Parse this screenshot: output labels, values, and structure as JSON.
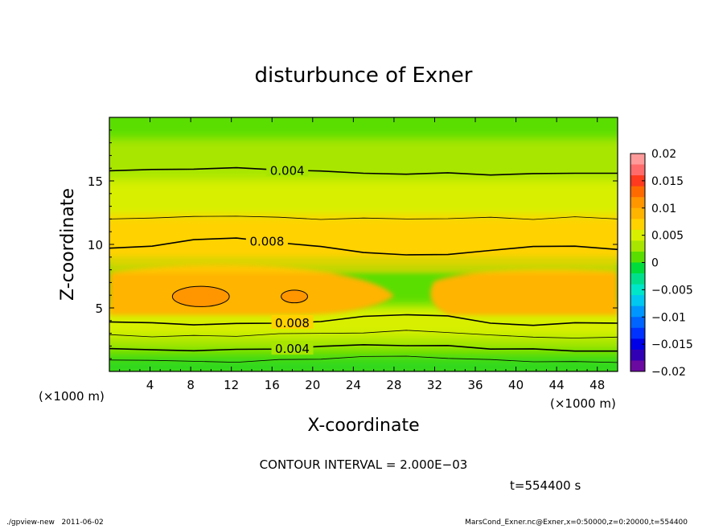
{
  "chart_data": {
    "type": "heatmap",
    "title": "disturbunce of Exner",
    "xlabel": "X-coordinate",
    "ylabel": "Z-coordinate",
    "x_unit_left": "(×1000 m)",
    "x_unit_right": "(×1000 m)",
    "xlim": [
      0,
      50
    ],
    "ylim": [
      0,
      20
    ],
    "x_ticks": [
      4,
      8,
      12,
      16,
      20,
      24,
      28,
      32,
      36,
      40,
      44,
      48
    ],
    "y_ticks": [
      5,
      10,
      15
    ],
    "colorbar": {
      "ticks": [
        0.02,
        0.015,
        0.01,
        0.005,
        0,
        -0.005,
        -0.01,
        -0.015,
        -0.02
      ],
      "tick_labels": [
        "0.02",
        "0.015",
        "0.01",
        "0.005",
        "0",
        "−0.005",
        "−0.01",
        "−0.015",
        "−0.02"
      ],
      "range": [
        -0.02,
        0.02
      ],
      "levels": [
        {
          "lo": 0.018,
          "hi": 0.02,
          "color": "#ff9a9a"
        },
        {
          "lo": 0.016,
          "hi": 0.018,
          "color": "#ff6b6b"
        },
        {
          "lo": 0.014,
          "hi": 0.016,
          "color": "#ff3a1e"
        },
        {
          "lo": 0.012,
          "hi": 0.014,
          "color": "#ff6a00"
        },
        {
          "lo": 0.01,
          "hi": 0.012,
          "color": "#ff9600"
        },
        {
          "lo": 0.008,
          "hi": 0.01,
          "color": "#ffb400"
        },
        {
          "lo": 0.006,
          "hi": 0.008,
          "color": "#ffd200"
        },
        {
          "lo": 0.004,
          "hi": 0.006,
          "color": "#d8f000"
        },
        {
          "lo": 0.002,
          "hi": 0.004,
          "color": "#a8e600"
        },
        {
          "lo": 0.0,
          "hi": 0.002,
          "color": "#5ade00"
        },
        {
          "lo": -0.002,
          "hi": 0.0,
          "color": "#00dc3c"
        },
        {
          "lo": -0.004,
          "hi": -0.002,
          "color": "#00e08c"
        },
        {
          "lo": -0.006,
          "hi": -0.004,
          "color": "#00e6c8"
        },
        {
          "lo": -0.008,
          "hi": -0.006,
          "color": "#00c8f0"
        },
        {
          "lo": -0.01,
          "hi": -0.008,
          "color": "#0096ff"
        },
        {
          "lo": -0.012,
          "hi": -0.01,
          "color": "#0064ff"
        },
        {
          "lo": -0.014,
          "hi": -0.012,
          "color": "#0032ff"
        },
        {
          "lo": -0.016,
          "hi": -0.014,
          "color": "#0000e6"
        },
        {
          "lo": -0.018,
          "hi": -0.016,
          "color": "#3200b4"
        },
        {
          "lo": -0.02,
          "hi": -0.018,
          "color": "#6a0aa0"
        }
      ]
    },
    "contours": [
      {
        "value": 0.004,
        "label": "0.004",
        "z": [
          15.8,
          15.9,
          16.0,
          16.0,
          15.9,
          15.7,
          15.6,
          15.6,
          15.6,
          15.5,
          15.5,
          15.6,
          15.6
        ]
      },
      {
        "value": 0.006,
        "label": "",
        "z": [
          12.0,
          12.0,
          12.2,
          12.3,
          12.1,
          12.0,
          12.0,
          12.0,
          12.1,
          12.1,
          12.0,
          12.1,
          12.0
        ]
      },
      {
        "value": 0.008,
        "label": "0.008",
        "z": [
          9.7,
          9.9,
          10.3,
          10.5,
          10.2,
          9.8,
          9.4,
          9.1,
          9.2,
          9.6,
          9.8,
          9.9,
          9.6
        ]
      },
      {
        "value": 0.008,
        "label": "0.008",
        "z": [
          3.9,
          3.8,
          3.7,
          3.7,
          3.8,
          4.0,
          4.3,
          4.5,
          4.3,
          3.8,
          3.7,
          3.8,
          3.8
        ]
      },
      {
        "value": 0.006,
        "label": "",
        "z": [
          2.9,
          2.8,
          2.8,
          2.8,
          2.9,
          3.0,
          3.1,
          3.2,
          3.1,
          2.8,
          2.7,
          2.7,
          2.7
        ]
      },
      {
        "value": 0.004,
        "label": "0.004",
        "z": [
          1.8,
          1.7,
          1.7,
          1.7,
          1.8,
          1.9,
          2.1,
          2.1,
          2.0,
          1.8,
          1.7,
          1.6,
          1.6
        ]
      },
      {
        "value": 0.002,
        "label": "",
        "z": [
          0.9,
          0.8,
          0.8,
          0.8,
          0.9,
          1.0,
          1.1,
          1.2,
          1.1,
          0.9,
          0.8,
          0.7,
          0.7
        ]
      }
    ],
    "contour_x": [
      0,
      4.2,
      8.3,
      12.5,
      16.7,
      20.8,
      25,
      29.2,
      33.3,
      37.5,
      41.7,
      45.8,
      50
    ],
    "hotspots": [
      {
        "x": 9.0,
        "z": 5.9,
        "rx": 2.8,
        "rz": 0.8
      },
      {
        "x": 18.2,
        "z": 5.9,
        "rx": 1.3,
        "rz": 0.5
      }
    ],
    "contour_interval": "CONTOUR INTERVAL = 2.000E−03",
    "time": "t=554400 s"
  },
  "footer": {
    "left": "./gpview-new   2011-06-02",
    "right": "MarsCond_Exner.nc@Exner,x=0:50000,z=0:20000,t=554400"
  }
}
